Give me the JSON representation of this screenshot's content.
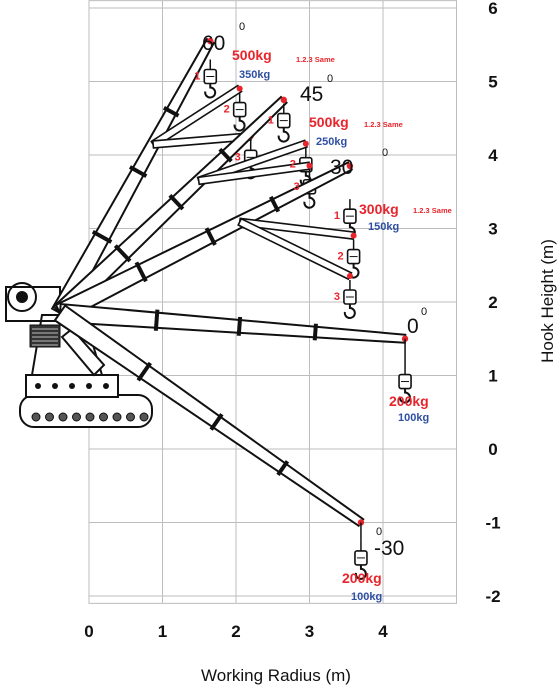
{
  "chart_data": {
    "type": "diagram",
    "xlabel": "Working Radius (m)",
    "ylabel": "Hook Height (m)",
    "x_ticks": [
      "0",
      "1",
      "2",
      "3",
      "4"
    ],
    "y_ticks": [
      "6",
      "5",
      "4",
      "3",
      "2",
      "1",
      "0",
      "-1",
      "-2"
    ],
    "xlim": [
      0,
      5
    ],
    "ylim": [
      -2.1,
      6.1
    ],
    "grid": true,
    "boom_positions": [
      {
        "angle": "60",
        "unit": "0",
        "tip": [
          1.65,
          5.55
        ],
        "rated_load": "500kg",
        "rated_load_ext": "350kg",
        "note": "1.2.3 Same",
        "hooks": [
          {
            "id": "1",
            "x": 1.65,
            "y": 5.0
          },
          {
            "id": "2",
            "x": 2.05,
            "y": 4.55
          },
          {
            "id": "3",
            "x": 2.2,
            "y": 3.9
          }
        ]
      },
      {
        "angle": "45",
        "unit": "0",
        "tip": [
          2.65,
          4.75
        ],
        "rated_load": "500kg",
        "rated_load_ext": "250kg",
        "note": "1.2.3 Same",
        "hooks": [
          {
            "id": "1",
            "x": 2.65,
            "y": 4.4
          },
          {
            "id": "2",
            "x": 2.95,
            "y": 3.8
          },
          {
            "id": "3",
            "x": 3.0,
            "y": 3.5
          }
        ]
      },
      {
        "angle": "30",
        "unit": "0",
        "tip": [
          3.55,
          3.85
        ],
        "rated_load": "300kg",
        "rated_load_ext": "150kg",
        "note": "1.2.3 Same",
        "hooks": [
          {
            "id": "1",
            "x": 3.55,
            "y": 3.1
          },
          {
            "id": "2",
            "x": 3.6,
            "y": 2.55
          },
          {
            "id": "3",
            "x": 3.55,
            "y": 2.0
          }
        ]
      },
      {
        "angle": "0",
        "unit": "0",
        "tip": [
          4.3,
          1.5
        ],
        "rated_load": "200kg",
        "rated_load_ext": "100kg",
        "hooks": [
          {
            "x": 4.3,
            "y": 0.85
          }
        ]
      },
      {
        "angle": "-30",
        "unit": "0",
        "tip": [
          3.7,
          -1.0
        ],
        "rated_load": "200kg",
        "rated_load_ext": "100kg",
        "hooks": [
          {
            "x": 3.7,
            "y": -1.55
          }
        ]
      }
    ]
  },
  "colors": {
    "load_main": "#e8242c",
    "load_ext": "#2f4fa3",
    "grid": "#bdbdbd",
    "ink": "#111111"
  }
}
